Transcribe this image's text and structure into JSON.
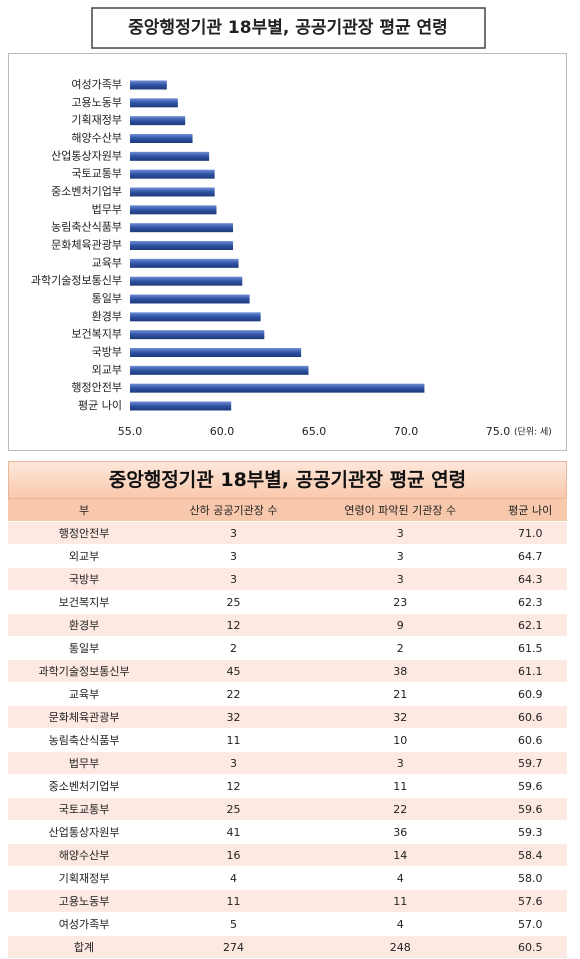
{
  "chart_data": {
    "type": "bar",
    "horizontal": true,
    "title": "중앙행정기관 18부별, 공공기관장 평균 연령",
    "categories": [
      "여성가족부",
      "고용노동부",
      "기획재정부",
      "해양수산부",
      "산업통상자원부",
      "국토교통부",
      "중소벤처기업부",
      "법무부",
      "농림축산식품부",
      "문화체육관광부",
      "교육부",
      "과학기술정보통신부",
      "통일부",
      "환경부",
      "보건복지부",
      "국방부",
      "외교부",
      "행정안전부",
      "평균 나이"
    ],
    "values": [
      57.0,
      57.6,
      58.0,
      58.4,
      59.3,
      59.6,
      59.6,
      59.7,
      60.6,
      60.6,
      60.9,
      61.1,
      61.5,
      62.1,
      62.3,
      64.3,
      64.7,
      71.0,
      60.5
    ],
    "color": "#2f52a4",
    "xlim": [
      55,
      75
    ],
    "xticks": [
      {
        "value": 55,
        "label": "55.0"
      },
      {
        "value": 60,
        "label": "60.0"
      },
      {
        "value": 65,
        "label": "65.0"
      },
      {
        "value": 70,
        "label": "70.0"
      },
      {
        "value": 75,
        "label": "75.0"
      }
    ],
    "unit_label": "(단위: 세)",
    "grid": false
  },
  "table": {
    "title": "중앙행정기관 18부별, 공공기관장 평균 연령",
    "headers": [
      "부",
      "산하 공공기관장 수",
      "연령이 파악된 기관장 수",
      "평균 나이"
    ],
    "rows": [
      [
        "행정안전부",
        "3",
        "3",
        "71.0"
      ],
      [
        "외교부",
        "3",
        "3",
        "64.7"
      ],
      [
        "국방부",
        "3",
        "3",
        "64.3"
      ],
      [
        "보건복지부",
        "25",
        "23",
        "62.3"
      ],
      [
        "환경부",
        "12",
        "9",
        "62.1"
      ],
      [
        "통일부",
        "2",
        "2",
        "61.5"
      ],
      [
        "과학기술정보통신부",
        "45",
        "38",
        "61.1"
      ],
      [
        "교육부",
        "22",
        "21",
        "60.9"
      ],
      [
        "문화체육관광부",
        "32",
        "32",
        "60.6"
      ],
      [
        "농림축산식품부",
        "11",
        "10",
        "60.6"
      ],
      [
        "법무부",
        "3",
        "3",
        "59.7"
      ],
      [
        "중소벤처기업부",
        "12",
        "11",
        "59.6"
      ],
      [
        "국토교통부",
        "25",
        "22",
        "59.6"
      ],
      [
        "산업통상자원부",
        "41",
        "36",
        "59.3"
      ],
      [
        "해양수산부",
        "16",
        "14",
        "58.4"
      ],
      [
        "기획재정부",
        "4",
        "4",
        "58.0"
      ],
      [
        "고용노동부",
        "11",
        "11",
        "57.6"
      ],
      [
        "여성가족부",
        "5",
        "4",
        "57.0"
      ],
      [
        "합계",
        "274",
        "248",
        "60.5"
      ]
    ]
  }
}
